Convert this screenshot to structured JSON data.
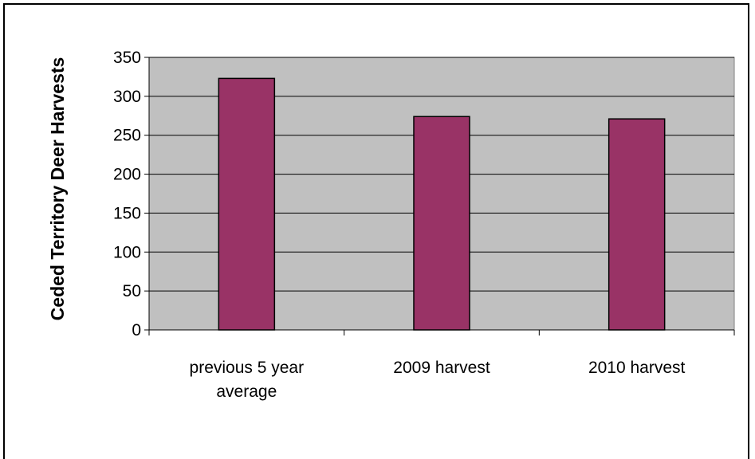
{
  "chart_data": {
    "type": "bar",
    "categories": [
      [
        "previous 5 year",
        "average"
      ],
      [
        "2009 harvest"
      ],
      [
        "2010 harvest"
      ]
    ],
    "values": [
      323,
      274,
      271
    ],
    "title": "",
    "xlabel": "",
    "ylabel": "Ceded Territory Deer Harvests",
    "ylim": [
      0,
      350
    ],
    "ytick_step": 50,
    "grid": true,
    "legend": "none",
    "colors": {
      "plot_background": "#c0c0c0",
      "bar_fill": "#993366",
      "grid": "#000000"
    }
  }
}
